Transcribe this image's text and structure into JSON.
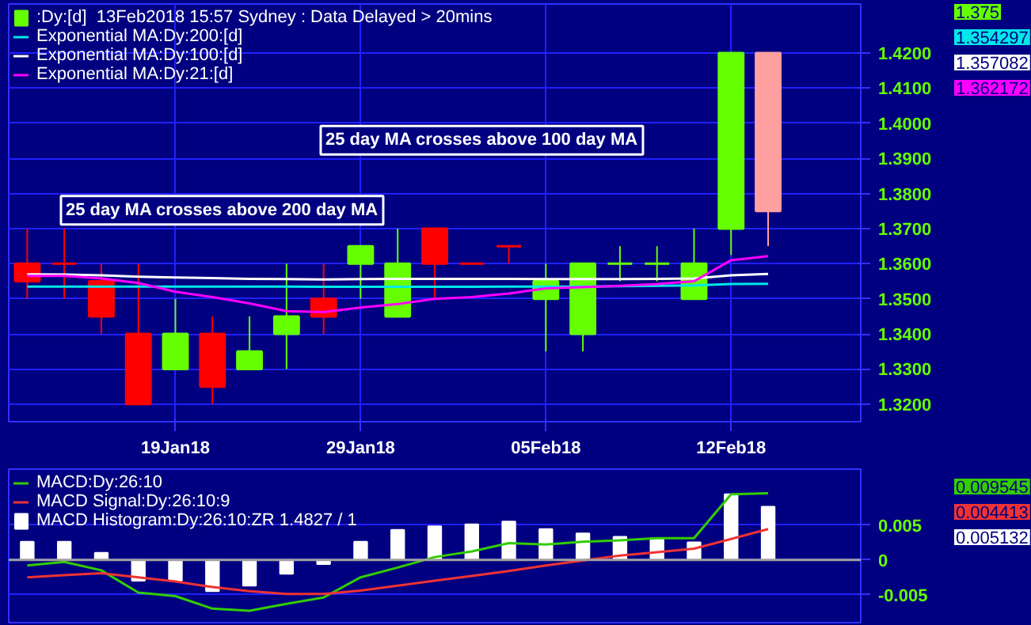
{
  "chart_data": [
    {
      "type": "candlestick",
      "categories": [
        null,
        null,
        null,
        null,
        "19Jan18",
        null,
        null,
        null,
        null,
        "29Jan18",
        null,
        null,
        null,
        null,
        "05Feb18",
        null,
        null,
        null,
        null,
        "12Feb18",
        null
      ],
      "ylim": [
        1.315,
        1.434
      ],
      "yticks": [
        {
          "value": 1.32,
          "label": "1.3200"
        },
        {
          "value": 1.33,
          "label": "1.3300"
        },
        {
          "value": 1.34,
          "label": "1.3400"
        },
        {
          "value": 1.35,
          "label": "1.3500"
        },
        {
          "value": 1.36,
          "label": "1.3600"
        },
        {
          "value": 1.37,
          "label": "1.3700"
        },
        {
          "value": 1.38,
          "label": "1.3800"
        },
        {
          "value": 1.39,
          "label": "1.3900"
        },
        {
          "value": 1.4,
          "label": "1.4000"
        },
        {
          "value": 1.41,
          "label": "1.4100"
        },
        {
          "value": 1.42,
          "label": "1.4200"
        }
      ],
      "grid": true,
      "legend": "top left",
      "annotations": [
        "1.375",
        "1.354297",
        "1.357082",
        "1.362172",
        "25 day MA crosses above 200 day MA",
        "25 day MA crosses above 100 day MA"
      ],
      "series": [
        {
          "name": ":Dy:[d]  13Feb2018 15:57 Sydney : Data Delayed > 20mins",
          "color": "#66ff00",
          "ohlc": [
            [
              1.36,
              1.37,
              1.35,
              1.355
            ],
            [
              1.36,
              1.37,
              1.35,
              1.36
            ],
            [
              1.355,
              1.36,
              1.34,
              1.345
            ],
            [
              1.34,
              1.36,
              1.32,
              1.32
            ],
            [
              1.33,
              1.35,
              1.33,
              1.34
            ],
            [
              1.34,
              1.345,
              1.32,
              1.325
            ],
            [
              1.33,
              1.345,
              1.33,
              1.335
            ],
            [
              1.34,
              1.36,
              1.33,
              1.345
            ],
            [
              1.35,
              1.36,
              1.34,
              1.345
            ],
            [
              1.36,
              1.365,
              1.35,
              1.365
            ],
            [
              1.345,
              1.37,
              1.345,
              1.36
            ],
            [
              1.37,
              1.37,
              1.35,
              1.36
            ],
            [
              1.36,
              1.36,
              1.36,
              1.36
            ],
            [
              1.365,
              1.365,
              1.36,
              1.365
            ],
            [
              1.35,
              1.36,
              1.335,
              1.355
            ],
            [
              1.34,
              1.36,
              1.335,
              1.36
            ],
            [
              1.36,
              1.365,
              1.355,
              1.36
            ],
            [
              1.36,
              1.365,
              1.355,
              1.36
            ],
            [
              1.35,
              1.37,
              1.35,
              1.36
            ],
            [
              1.37,
              1.42,
              1.3625,
              1.42
            ],
            [
              1.42,
              1.42,
              1.365,
              1.375
            ]
          ],
          "colors": [
            "#ff0000",
            "#ff0000",
            "#ff0000",
            "#ff0000",
            "#66ff00",
            "#ff0000",
            "#66ff00",
            "#66ff00",
            "#ff0000",
            "#66ff00",
            "#66ff00",
            "#ff0000",
            "#ff0000",
            "#ff0000",
            "#66ff00",
            "#66ff00",
            "#66ff00",
            "#66ff00",
            "#66ff00",
            "#66ff00",
            "#ffa0a0"
          ]
        },
        {
          "type": "line",
          "name": "Exponential MA:Dy:200:[d]",
          "color": "#00e8e8",
          "values": [
            1.3535,
            1.3535,
            1.3535,
            1.3535,
            1.3535,
            1.3535,
            1.3535,
            1.3535,
            1.3534,
            1.3534,
            1.3534,
            1.3534,
            1.3534,
            1.3535,
            1.3535,
            1.3535,
            1.3536,
            1.3537,
            1.3538,
            1.3542,
            1.354297
          ]
        },
        {
          "type": "line",
          "name": "Exponential MA:Dy:100:[d]",
          "color": "#ffffff",
          "values": [
            1.357,
            1.3569,
            1.3567,
            1.3563,
            1.3561,
            1.3559,
            1.3557,
            1.3556,
            1.3555,
            1.3556,
            1.3557,
            1.3557,
            1.3557,
            1.3557,
            1.3556,
            1.3556,
            1.3556,
            1.3557,
            1.3558,
            1.3567,
            1.357082
          ]
        },
        {
          "type": "line",
          "name": "Exponential MA:Dy:21:[d]",
          "color": "#ff00ff",
          "values": [
            1.3565,
            1.3565,
            1.3558,
            1.3545,
            1.352,
            1.3505,
            1.3487,
            1.3465,
            1.3462,
            1.3475,
            1.3485,
            1.35,
            1.3505,
            1.3515,
            1.353,
            1.3533,
            1.3537,
            1.3542,
            1.355,
            1.361,
            1.362172
          ]
        }
      ]
    },
    {
      "type": "bar",
      "categories": [
        null,
        null,
        null,
        null,
        null,
        null,
        null,
        null,
        null,
        null,
        null,
        null,
        null,
        null,
        null,
        null,
        null,
        null,
        null,
        null,
        null
      ],
      "ylim": [
        -0.009,
        0.013
      ],
      "yticks": [
        -0.005,
        0,
        0.005
      ],
      "grid": true,
      "legend": "top left",
      "tick_labels": "y",
      "ref_lines": [
        {
          "axis": "y",
          "value": 0,
          "color": "#a0a0a0"
        }
      ],
      "annotations": [
        "0.009545",
        "0.004413",
        "0.005132"
      ],
      "series": [
        {
          "type": "line",
          "name": "MACD:Dy:26:10",
          "color": "#33cc00",
          "values": [
            -0.0008,
            -0.0003,
            -0.0015,
            -0.0047,
            -0.0052,
            -0.007,
            -0.0073,
            -0.0063,
            -0.0054,
            -0.0025,
            -0.0011,
            0.0004,
            0.0012,
            0.0024,
            0.0022,
            0.0026,
            0.0028,
            0.0031,
            0.0031,
            0.0094,
            0.009545
          ]
        },
        {
          "type": "line",
          "name": "MACD Signal:Dy:26:10:9",
          "color": "#ee3333",
          "values": [
            -0.0025,
            -0.0022,
            -0.0019,
            -0.0025,
            -0.0031,
            -0.0039,
            -0.0045,
            -0.0049,
            -0.0049,
            -0.0044,
            -0.0037,
            -0.003,
            -0.0023,
            -0.0016,
            -0.0008,
            -0.0001,
            0.0006,
            0.0011,
            0.0016,
            0.003,
            0.004413
          ]
        },
        {
          "name": "MACD Histogram:Dy:26:10:ZR 1.4827 / 1",
          "color": "#ffffff",
          "values": [
            0.0026,
            0.0026,
            0.001,
            -0.003,
            -0.003,
            -0.0045,
            -0.0037,
            -0.002,
            -0.0006,
            0.0026,
            0.0043,
            0.0048,
            0.0051,
            0.0055,
            0.0044,
            0.0038,
            0.0033,
            0.0031,
            0.0025,
            0.0094,
            0.0076
          ]
        }
      ]
    }
  ]
}
